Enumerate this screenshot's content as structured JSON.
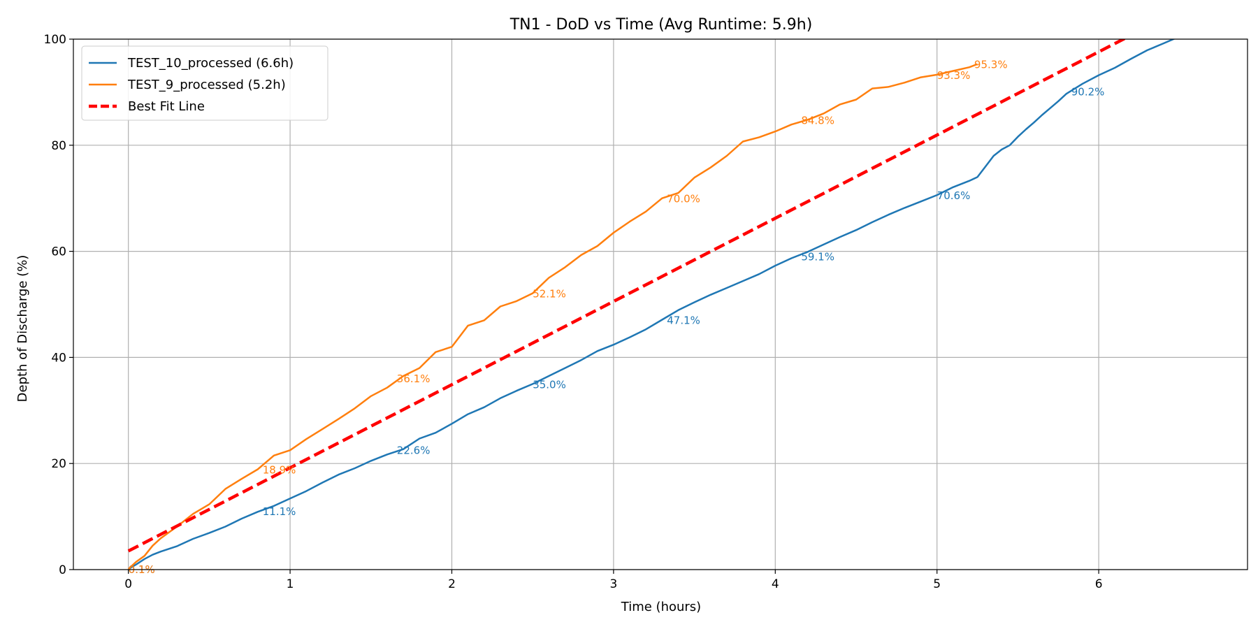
{
  "chart_data": {
    "type": "line",
    "title": "TN1 - DoD vs Time (Avg Runtime: 5.9h)",
    "xlabel": "Time (hours)",
    "ylabel": "Depth of Discharge (%)",
    "xlim": [
      -0.34,
      6.92
    ],
    "ylim": [
      0,
      100
    ],
    "xticks": [
      0,
      1,
      2,
      3,
      4,
      5,
      6
    ],
    "yticks": [
      0,
      20,
      40,
      60,
      80,
      100
    ],
    "grid": true,
    "legend_position": "top-left",
    "series": [
      {
        "name": "TEST_10_processed (6.6h)",
        "color": "#1f77b4",
        "style": "solid",
        "x": [
          0,
          0.05,
          0.1,
          0.15,
          0.2,
          0.3,
          0.4,
          0.5,
          0.6,
          0.7,
          0.8,
          0.9,
          1.0,
          1.1,
          1.2,
          1.3,
          1.4,
          1.5,
          1.6,
          1.7,
          1.8,
          1.9,
          2.0,
          2.1,
          2.2,
          2.3,
          2.4,
          2.5,
          2.6,
          2.7,
          2.8,
          2.9,
          3.0,
          3.1,
          3.2,
          3.3,
          3.4,
          3.5,
          3.6,
          3.7,
          3.8,
          3.9,
          4.0,
          4.1,
          4.2,
          4.3,
          4.4,
          4.5,
          4.6,
          4.7,
          4.8,
          4.9,
          5.0,
          5.1,
          5.2,
          5.25,
          5.3,
          5.35,
          5.4,
          5.45,
          5.5,
          5.55,
          5.6,
          5.65,
          5.7,
          5.75,
          5.8,
          5.9,
          6.0,
          6.1,
          6.2,
          6.3,
          6.4,
          6.5,
          6.6
        ],
        "values": [
          0.1,
          1.0,
          2.0,
          2.8,
          3.4,
          4.4,
          5.8,
          6.9,
          8.1,
          9.6,
          10.9,
          12.0,
          13.4,
          14.8,
          16.4,
          17.9,
          19.1,
          20.5,
          21.7,
          22.7,
          24.7,
          25.8,
          27.5,
          29.3,
          30.6,
          32.3,
          33.7,
          35.0,
          36.5,
          38.0,
          39.5,
          41.2,
          42.4,
          43.8,
          45.3,
          47.1,
          48.9,
          50.4,
          51.8,
          53.1,
          54.4,
          55.7,
          57.3,
          58.7,
          59.9,
          61.3,
          62.7,
          64.0,
          65.5,
          66.9,
          68.2,
          69.4,
          70.6,
          72.1,
          73.3,
          74.0,
          76.0,
          78.0,
          79.2,
          80.0,
          81.6,
          83.0,
          84.3,
          85.7,
          87.0,
          88.3,
          89.7,
          91.6,
          93.2,
          94.6,
          96.3,
          97.9,
          99.2,
          100.5,
          101.8
        ],
        "annotation_labels": [
          "0.1%",
          "11.1%",
          "22.6%",
          "35.0%",
          "47.1%",
          "59.1%",
          "70.6%",
          "90.2%"
        ],
        "annotation_x": [
          0.0,
          0.83,
          1.66,
          2.5,
          3.33,
          4.16,
          5.0,
          5.83
        ],
        "annotation_y": [
          0.1,
          11.1,
          22.6,
          35.0,
          47.1,
          59.1,
          70.6,
          90.2
        ]
      },
      {
        "name": "TEST_9_processed (5.2h)",
        "color": "#ff7f0e",
        "style": "solid",
        "x": [
          0,
          0.05,
          0.1,
          0.15,
          0.2,
          0.3,
          0.4,
          0.5,
          0.6,
          0.7,
          0.8,
          0.9,
          1.0,
          1.1,
          1.2,
          1.3,
          1.4,
          1.5,
          1.6,
          1.7,
          1.8,
          1.9,
          2.0,
          2.1,
          2.2,
          2.3,
          2.4,
          2.5,
          2.6,
          2.7,
          2.8,
          2.9,
          3.0,
          3.1,
          3.2,
          3.3,
          3.4,
          3.5,
          3.6,
          3.7,
          3.8,
          3.9,
          4.0,
          4.1,
          4.2,
          4.3,
          4.4,
          4.5,
          4.6,
          4.7,
          4.8,
          4.9,
          5.0,
          5.1,
          5.2,
          5.25
        ],
        "values": [
          0.1,
          1.5,
          2.6,
          4.5,
          5.9,
          8.1,
          10.5,
          12.3,
          15.2,
          17.1,
          18.9,
          21.5,
          22.5,
          24.6,
          26.5,
          28.4,
          30.4,
          32.7,
          34.3,
          36.5,
          38.0,
          41.0,
          42.0,
          46.0,
          47.0,
          49.6,
          50.6,
          52.1,
          55.0,
          57.0,
          59.3,
          61.0,
          63.5,
          65.6,
          67.5,
          70.0,
          71.0,
          73.9,
          75.8,
          78.0,
          80.7,
          81.5,
          82.6,
          83.9,
          84.8,
          86.0,
          87.7,
          88.6,
          90.7,
          91.0,
          91.8,
          92.8,
          93.3,
          94.0,
          94.7,
          95.3
        ],
        "annotation_labels": [
          "0.1%",
          "18.9%",
          "36.1%",
          "52.1%",
          "70.0%",
          "84.8%",
          "93.3%",
          "95.3%"
        ],
        "annotation_x": [
          0.0,
          0.83,
          1.66,
          2.5,
          3.33,
          4.16,
          5.0,
          5.23
        ],
        "annotation_y": [
          0.1,
          18.9,
          36.1,
          52.1,
          70.0,
          84.8,
          93.3,
          95.3
        ]
      },
      {
        "name": "Best Fit Line",
        "color": "#ff0000",
        "style": "dashed",
        "x": [
          0,
          6.3
        ],
        "values": [
          3.5,
          102.3
        ]
      }
    ]
  }
}
